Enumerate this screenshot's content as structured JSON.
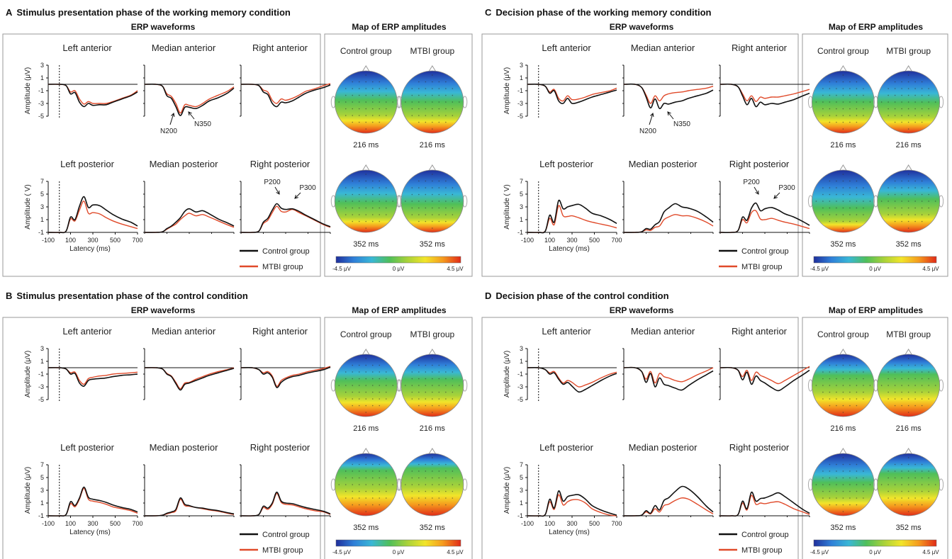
{
  "panels": [
    {
      "letter": "A",
      "title": "Stimulus presentation phase of the working memory condition",
      "erp_heading": "ERP waveforms",
      "map_heading": "Map of ERP amplitudes",
      "condition": "wm",
      "phase": "stim"
    },
    {
      "letter": "C",
      "title": "Decision phase of the working memory condition",
      "erp_heading": "ERP waveforms",
      "map_heading": "Map of ERP amplitudes",
      "condition": "wm",
      "phase": "dec"
    },
    {
      "letter": "B",
      "title": "Stimulus presentation phase of the control condition",
      "erp_heading": "ERP waveforms",
      "map_heading": "Map of ERP amplitudes",
      "condition": "ctrl",
      "phase": "stim"
    },
    {
      "letter": "D",
      "title": "Decision phase of the control condition",
      "erp_heading": "ERP waveforms",
      "map_heading": "Map of ERP amplitudes",
      "condition": "ctrl",
      "phase": "dec"
    }
  ],
  "regions": {
    "anterior": [
      "Left anterior",
      "Median anterior",
      "Right anterior"
    ],
    "posterior": [
      "Left posterior",
      "Median posterior",
      "Right posterior"
    ]
  },
  "axes": {
    "anterior_ylabel": "Amplitude (μV)",
    "posterior_ylabel_stim_A": "Amplitude ( V)",
    "posterior_ylabel": "Amplitude (μV)",
    "anterior_yticks": [
      "3",
      "1",
      "-1",
      "-3",
      "-5"
    ],
    "posterior_yticks": [
      "7",
      "5",
      "3",
      "1",
      "-1"
    ],
    "xticks": [
      "-100",
      "100",
      "300",
      "500",
      "700"
    ],
    "xlabel": "Latency (ms)"
  },
  "legend": {
    "control": "Control group",
    "mtbi": "MTBI group"
  },
  "maps": {
    "group_labels": [
      "Control group",
      "MTBI group"
    ],
    "times": [
      "216 ms",
      "352 ms"
    ],
    "colorbar": {
      "min": "-4.5 μV",
      "mid": "0 μV",
      "max": "4.5 μV"
    },
    "colors": [
      "#1f2f9c",
      "#2f7fd8",
      "#39b7d6",
      "#4fbf5a",
      "#a8d23a",
      "#f2e52a",
      "#f59a1e",
      "#e02a18"
    ]
  },
  "annotations": {
    "N200": "N200",
    "N350": "N350",
    "P200": "P200",
    "P300": "P300"
  },
  "colors": {
    "control": "#111111",
    "mtbi": "#e04a2a",
    "frame": "#9a9a9a"
  },
  "chart_data": {
    "type": "line",
    "x_unit": "ms",
    "xlim": [
      -100,
      700
    ],
    "anterior_ylim": [
      -5,
      3
    ],
    "posterior_ylim": [
      -1,
      7
    ],
    "series": [
      {
        "name": "Control group",
        "color": "#111111"
      },
      {
        "name": "MTBI group",
        "color": "#e04a2a"
      }
    ],
    "knots_x": [
      -100,
      0,
      60,
      100,
      140,
      180,
      220,
      260,
      300,
      360,
      420,
      480,
      560,
      640,
      700
    ],
    "waveforms": {
      "wm_stim": {
        "anterior": [
          {
            "control": [
              0,
              0,
              -0.2,
              -1.5,
              -1.3,
              -2.8,
              -3.5,
              -3.0,
              -3.3,
              -3.2,
              -3.2,
              -2.8,
              -2.3,
              -1.8,
              -1.2
            ],
            "mtbi": [
              0,
              0,
              -0.2,
              -1.2,
              -1.0,
              -2.3,
              -3.1,
              -2.7,
              -3.0,
              -3.0,
              -3.0,
              -2.7,
              -2.2,
              -1.7,
              -1.0
            ]
          },
          {
            "control": [
              0,
              0,
              -0.3,
              -1.8,
              -2.2,
              -3.5,
              -4.9,
              -3.6,
              -3.6,
              -3.8,
              -3.3,
              -2.6,
              -2.1,
              -1.4,
              -0.6
            ],
            "mtbi": [
              0,
              0,
              -0.3,
              -1.5,
              -1.9,
              -3.0,
              -4.5,
              -3.2,
              -3.3,
              -3.5,
              -3.0,
              -2.3,
              -1.7,
              -1.1,
              -0.4
            ]
          },
          {
            "control": [
              0,
              0,
              -0.2,
              -1.2,
              -1.6,
              -3.0,
              -3.5,
              -2.8,
              -2.9,
              -2.6,
              -2.0,
              -1.4,
              -0.9,
              -0.5,
              -0.1
            ],
            "mtbi": [
              0,
              0,
              -0.2,
              -0.9,
              -1.2,
              -2.5,
              -3.0,
              -2.3,
              -2.5,
              -2.2,
              -1.7,
              -1.1,
              -0.7,
              -0.2,
              0.1
            ]
          }
        ],
        "posterior": [
          {
            "control": [
              0,
              0,
              0.2,
              2.4,
              2.0,
              4.1,
              5.6,
              3.9,
              4.3,
              4.2,
              3.5,
              2.8,
              2.1,
              1.6,
              1.0
            ],
            "mtbi": [
              0,
              0,
              0.2,
              2.1,
              1.8,
              3.5,
              4.9,
              3.0,
              3.1,
              2.9,
              2.3,
              1.8,
              1.3,
              0.9,
              0.6
            ]
          },
          {
            "control": [
              0,
              0,
              0.1,
              0.6,
              1.0,
              1.6,
              2.3,
              3.3,
              3.7,
              3.2,
              3.4,
              2.9,
              2.1,
              1.5,
              1.0
            ],
            "mtbi": [
              0,
              0,
              0.1,
              0.5,
              0.9,
              1.3,
              2.0,
              2.6,
              3.0,
              2.6,
              2.8,
              2.4,
              1.8,
              1.2,
              0.8
            ]
          },
          {
            "control": [
              0,
              0,
              0.2,
              1.6,
              2.2,
              3.5,
              4.5,
              3.8,
              3.6,
              3.7,
              3.3,
              2.7,
              2.0,
              1.3,
              0.9
            ],
            "mtbi": [
              0,
              0,
              0.2,
              1.4,
              1.9,
              3.1,
              4.1,
              3.3,
              3.2,
              3.6,
              3.1,
              2.6,
              1.9,
              1.2,
              0.8
            ]
          }
        ]
      },
      "wm_dec": {
        "anterior": [
          {
            "control": [
              0,
              0,
              -0.3,
              -1.4,
              -1.0,
              -2.6,
              -3.0,
              -2.2,
              -3.0,
              -2.8,
              -2.4,
              -2.0,
              -1.6,
              -1.2,
              -0.9
            ],
            "mtbi": [
              0,
              0,
              -0.3,
              -1.2,
              -0.8,
              -2.2,
              -2.6,
              -1.8,
              -2.4,
              -2.3,
              -2.0,
              -1.6,
              -1.3,
              -1.0,
              -0.6
            ]
          },
          {
            "control": [
              0,
              0,
              -0.5,
              -2.0,
              -3.7,
              -2.3,
              -3.8,
              -3.0,
              -3.1,
              -2.8,
              -2.6,
              -2.2,
              -1.8,
              -1.4,
              -0.9
            ],
            "mtbi": [
              0,
              0,
              -0.5,
              -1.7,
              -3.0,
              -1.8,
              -2.6,
              -1.8,
              -1.5,
              -1.3,
              -1.2,
              -1.0,
              -0.8,
              -0.6,
              -0.3
            ]
          },
          {
            "control": [
              0,
              0,
              -0.4,
              -1.8,
              -3.2,
              -2.2,
              -3.5,
              -2.8,
              -3.2,
              -3.0,
              -3.1,
              -2.8,
              -2.4,
              -1.8,
              -1.4
            ],
            "mtbi": [
              0,
              0,
              -0.4,
              -1.5,
              -2.6,
              -1.8,
              -2.7,
              -2.0,
              -2.2,
              -2.0,
              -2.0,
              -1.8,
              -1.5,
              -1.1,
              -0.8
            ]
          }
        ],
        "posterior": [
          {
            "control": [
              0,
              0,
              0.2,
              2.7,
              1.6,
              5.0,
              3.7,
              4.0,
              4.2,
              4.4,
              3.8,
              3.0,
              2.6,
              2.0,
              1.4
            ],
            "mtbi": [
              0,
              0,
              0.2,
              2.2,
              1.2,
              4.2,
              2.6,
              2.5,
              2.6,
              2.3,
              1.9,
              1.6,
              1.3,
              1.0,
              0.7
            ]
          },
          {
            "control": [
              0,
              0,
              0.1,
              0.6,
              0.5,
              1.2,
              1.7,
              3.2,
              3.8,
              4.5,
              4.0,
              3.8,
              3.3,
              2.4,
              1.6
            ],
            "mtbi": [
              0,
              0,
              0.1,
              0.4,
              0.3,
              0.8,
              1.0,
              2.0,
              2.4,
              2.8,
              2.6,
              2.6,
              2.2,
              1.6,
              1.0
            ]
          },
          {
            "control": [
              0,
              0,
              0.3,
              2.4,
              1.9,
              3.8,
              4.6,
              3.4,
              3.7,
              3.9,
              3.5,
              2.9,
              2.4,
              1.7,
              1.1
            ],
            "mtbi": [
              0,
              0,
              0.3,
              2.0,
              1.5,
              3.1,
              3.4,
              2.1,
              2.0,
              2.2,
              1.9,
              1.6,
              1.3,
              0.9,
              0.6
            ]
          }
        ]
      },
      "ctrl_stim": {
        "anterior": [
          {
            "control": [
              0,
              0,
              -0.2,
              -1.0,
              -0.9,
              -2.4,
              -2.9,
              -2.0,
              -1.8,
              -1.7,
              -1.6,
              -1.4,
              -1.2,
              -1.1,
              -1.0
            ],
            "mtbi": [
              0,
              0,
              -0.2,
              -0.8,
              -0.7,
              -2.0,
              -2.6,
              -1.7,
              -1.5,
              -1.3,
              -1.2,
              -1.0,
              -0.9,
              -0.8,
              -0.7
            ]
          },
          {
            "control": [
              0,
              0,
              -0.2,
              -1.0,
              -1.4,
              -2.5,
              -3.5,
              -2.6,
              -2.4,
              -2.0,
              -1.6,
              -1.2,
              -0.8,
              -0.4,
              -0.1
            ],
            "mtbi": [
              0,
              0,
              -0.2,
              -0.9,
              -1.3,
              -2.3,
              -3.3,
              -2.4,
              -2.3,
              -1.8,
              -1.4,
              -1.0,
              -0.6,
              -0.3,
              0.0
            ]
          },
          {
            "control": [
              0,
              0,
              -0.3,
              -1.0,
              -0.8,
              -1.5,
              -3.1,
              -2.3,
              -1.8,
              -1.4,
              -1.2,
              -0.9,
              -0.6,
              -0.3,
              0.1
            ],
            "mtbi": [
              0,
              0,
              -0.3,
              -0.8,
              -0.6,
              -1.3,
              -2.9,
              -2.0,
              -1.6,
              -1.2,
              -1.0,
              -0.7,
              -0.4,
              -0.1,
              0.2
            ]
          }
        ],
        "posterior": [
          {
            "control": [
              0,
              0,
              0.2,
              2.2,
              1.6,
              2.8,
              4.5,
              2.9,
              2.6,
              2.4,
              2.1,
              1.7,
              1.3,
              1.0,
              0.6
            ],
            "mtbi": [
              0,
              0,
              0.2,
              1.9,
              1.4,
              2.6,
              4.3,
              2.6,
              2.3,
              2.1,
              1.8,
              1.4,
              1.1,
              0.8,
              0.4
            ]
          },
          {
            "control": [
              0,
              0,
              0.1,
              0.4,
              0.6,
              1.0,
              2.8,
              1.8,
              1.6,
              1.3,
              1.2,
              1.0,
              0.8,
              0.5,
              0.3
            ],
            "mtbi": [
              0,
              0,
              0.1,
              0.3,
              0.5,
              0.8,
              2.6,
              1.6,
              1.5,
              1.3,
              1.1,
              0.9,
              0.7,
              0.4,
              0.2
            ]
          },
          {
            "control": [
              0,
              0,
              0.2,
              1.5,
              1.2,
              2.0,
              3.7,
              2.3,
              2.0,
              1.9,
              1.6,
              1.3,
              1.0,
              0.7,
              0.3
            ],
            "mtbi": [
              0,
              0,
              0.2,
              1.3,
              1.0,
              1.8,
              3.5,
              2.1,
              1.8,
              1.7,
              1.4,
              1.1,
              0.8,
              0.6,
              0.2
            ]
          }
        ]
      },
      "ctrl_dec": {
        "anterior": [
          {
            "control": [
              0,
              0,
              -0.3,
              -1.0,
              -0.8,
              -1.8,
              -2.6,
              -2.3,
              -2.9,
              -3.8,
              -3.4,
              -2.8,
              -2.0,
              -1.3,
              -0.9
            ],
            "mtbi": [
              0,
              0,
              -0.3,
              -0.8,
              -0.6,
              -1.6,
              -2.4,
              -2.0,
              -2.3,
              -3.0,
              -2.7,
              -2.3,
              -1.6,
              -1.0,
              -0.7
            ]
          },
          {
            "control": [
              0,
              0,
              -0.6,
              -2.3,
              -0.9,
              -3.0,
              -1.6,
              -2.6,
              -2.8,
              -3.2,
              -3.5,
              -2.8,
              -1.9,
              -1.1,
              -0.5
            ],
            "mtbi": [
              0,
              0,
              -0.6,
              -1.8,
              -0.6,
              -2.4,
              -0.9,
              -1.4,
              -1.6,
              -2.0,
              -2.2,
              -1.8,
              -1.1,
              -0.5,
              0.0
            ]
          },
          {
            "control": [
              0,
              0,
              -0.4,
              -1.9,
              -0.7,
              -2.6,
              -1.3,
              -2.0,
              -2.4,
              -3.1,
              -3.6,
              -3.0,
              -2.0,
              -1.1,
              -0.4
            ],
            "mtbi": [
              0,
              0,
              -0.4,
              -1.4,
              -0.4,
              -2.0,
              -0.7,
              -1.2,
              -1.5,
              -2.0,
              -2.5,
              -2.0,
              -1.2,
              -0.4,
              0.2
            ]
          }
        ],
        "posterior": [
          {
            "control": [
              0,
              0,
              0.2,
              2.6,
              1.2,
              3.9,
              2.3,
              3.0,
              3.2,
              3.3,
              2.6,
              1.6,
              0.9,
              0.4,
              0.1
            ],
            "mtbi": [
              0,
              0,
              0.2,
              2.2,
              1.0,
              3.3,
              1.7,
              2.2,
              2.5,
              2.5,
              2.0,
              1.1,
              0.5,
              0.1,
              0.0
            ]
          },
          {
            "control": [
              0,
              0,
              0.1,
              0.8,
              0.4,
              1.6,
              0.9,
              2.4,
              2.8,
              3.8,
              4.6,
              4.2,
              3.0,
              1.5,
              0.6
            ],
            "mtbi": [
              0,
              0,
              0.1,
              0.6,
              0.3,
              1.1,
              0.6,
              1.6,
              1.8,
              2.4,
              2.8,
              2.6,
              1.8,
              0.9,
              0.3
            ]
          },
          {
            "control": [
              0,
              0,
              0.2,
              2.3,
              1.1,
              3.7,
              2.3,
              2.7,
              2.8,
              3.2,
              3.6,
              3.0,
              2.0,
              1.0,
              0.4
            ],
            "mtbi": [
              0,
              0,
              0.2,
              2.0,
              0.9,
              3.2,
              1.8,
              2.0,
              1.9,
              2.1,
              2.2,
              1.8,
              1.1,
              0.6,
              0.2
            ]
          }
        ]
      }
    },
    "topomaps": {
      "wm_stim": [
        [
          0.55,
          0.58
        ],
        [
          0.62,
          0.64
        ]
      ],
      "wm_dec": [
        [
          0.58,
          0.6
        ],
        [
          0.72,
          0.55
        ]
      ],
      "ctrl_stim": [
        [
          0.5,
          0.48
        ],
        [
          0.32,
          0.28
        ]
      ],
      "ctrl_dec": [
        [
          0.4,
          0.38
        ],
        [
          0.55,
          0.38
        ]
      ]
    }
  }
}
